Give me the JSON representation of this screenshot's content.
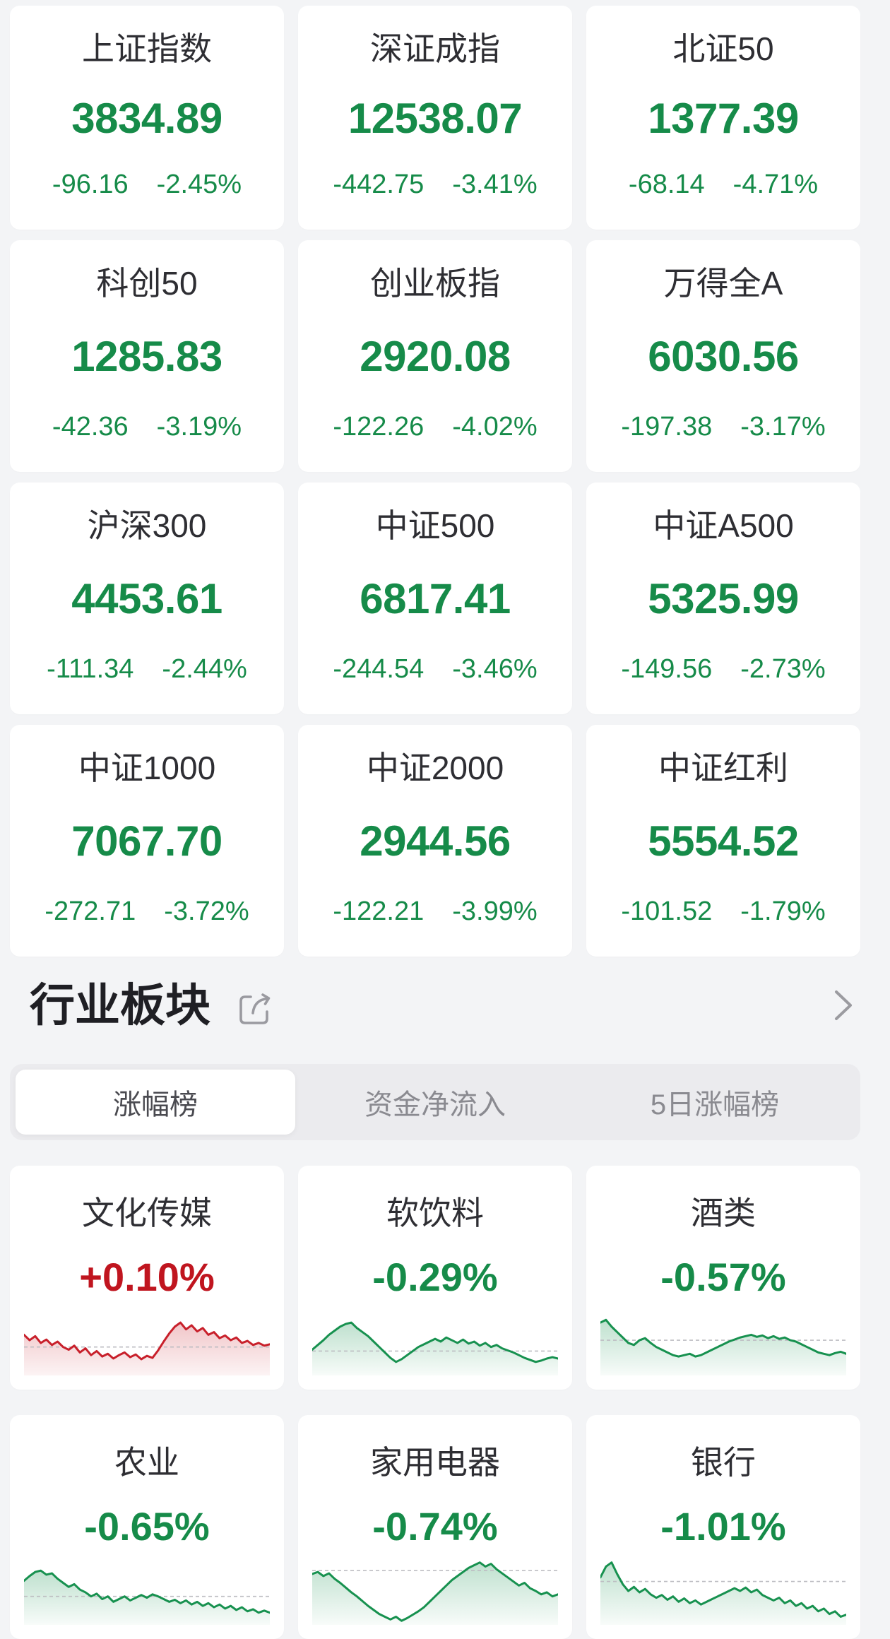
{
  "theme": {
    "down_green": "#168B49",
    "up_red": "#C0151F",
    "green_line": "#17914F",
    "red_line": "#C8202B",
    "green_fill_top": "rgba(23,145,79,0.28)",
    "green_fill_bottom": "rgba(23,145,79,0.03)",
    "red_fill_top": "rgba(200,32,43,0.26)",
    "red_fill_bottom": "rgba(200,32,43,0.05)",
    "baseline_color": "#bdbdc2",
    "page_bg": "#f3f4f6",
    "card_bg": "#ffffff"
  },
  "indices": [
    {
      "name": "上证指数",
      "value": "3834.89",
      "change": "-96.16",
      "change_pct": "-2.45%"
    },
    {
      "name": "深证成指",
      "value": "12538.07",
      "change": "-442.75",
      "change_pct": "-3.41%"
    },
    {
      "name": "北证50",
      "value": "1377.39",
      "change": "-68.14",
      "change_pct": "-4.71%"
    },
    {
      "name": "科创50",
      "value": "1285.83",
      "change": "-42.36",
      "change_pct": "-3.19%"
    },
    {
      "name": "创业板指",
      "value": "2920.08",
      "change": "-122.26",
      "change_pct": "-4.02%"
    },
    {
      "name": "万得全A",
      "value": "6030.56",
      "change": "-197.38",
      "change_pct": "-3.17%"
    },
    {
      "name": "沪深300",
      "value": "4453.61",
      "change": "-111.34",
      "change_pct": "-2.44%"
    },
    {
      "name": "中证500",
      "value": "6817.41",
      "change": "-244.54",
      "change_pct": "-3.46%"
    },
    {
      "name": "中证A500",
      "value": "5325.99",
      "change": "-149.56",
      "change_pct": "-2.73%"
    },
    {
      "name": "中证1000",
      "value": "7067.70",
      "change": "-272.71",
      "change_pct": "-3.72%"
    },
    {
      "name": "中证2000",
      "value": "2944.56",
      "change": "-122.21",
      "change_pct": "-3.99%"
    },
    {
      "name": "中证红利",
      "value": "5554.52",
      "change": "-101.52",
      "change_pct": "-1.79%"
    }
  ],
  "section": {
    "title": "行业板块"
  },
  "tabs": [
    {
      "label": "涨幅榜",
      "active": true
    },
    {
      "label": "资金净流入",
      "active": false
    },
    {
      "label": "5日涨幅榜",
      "active": false
    }
  ],
  "sectors": [
    {
      "name": "文化传媒",
      "change_pct": "+0.10%",
      "direction": "up",
      "baseline": 58,
      "points": [
        40,
        48,
        42,
        52,
        47,
        55,
        50,
        58,
        62,
        56,
        66,
        60,
        70,
        64,
        72,
        68,
        75,
        70,
        66,
        73,
        69,
        76,
        71,
        74,
        63,
        50,
        38,
        28,
        22,
        32,
        26,
        35,
        30,
        40,
        36,
        45,
        41,
        48,
        44,
        52,
        49,
        55,
        52,
        56,
        54
      ]
    },
    {
      "name": "软饮料",
      "change_pct": "-0.29%",
      "direction": "down",
      "baseline": 64,
      "points": [
        62,
        55,
        48,
        40,
        34,
        28,
        24,
        22,
        30,
        36,
        42,
        50,
        58,
        66,
        74,
        80,
        76,
        70,
        64,
        58,
        54,
        50,
        46,
        50,
        44,
        48,
        52,
        47,
        53,
        50,
        56,
        52,
        58,
        55,
        60,
        63,
        66,
        70,
        74,
        77,
        80,
        78,
        75,
        73,
        75
      ]
    },
    {
      "name": "酒类",
      "change_pct": "-0.57%",
      "direction": "down",
      "baseline": 48,
      "points": [
        22,
        18,
        28,
        36,
        44,
        52,
        55,
        48,
        45,
        52,
        58,
        62,
        66,
        70,
        72,
        70,
        68,
        72,
        70,
        66,
        62,
        58,
        54,
        50,
        47,
        44,
        42,
        40,
        43,
        41,
        45,
        42,
        46,
        44,
        48,
        50,
        54,
        58,
        62,
        66,
        68,
        70,
        67,
        65,
        68
      ]
    },
    {
      "name": "农业",
      "change_pct": "-0.65%",
      "direction": "down",
      "baseline": 58,
      "points": [
        35,
        28,
        22,
        20,
        26,
        24,
        32,
        38,
        44,
        40,
        48,
        52,
        58,
        54,
        62,
        58,
        66,
        62,
        58,
        64,
        60,
        56,
        60,
        55,
        58,
        62,
        66,
        63,
        68,
        64,
        70,
        66,
        72,
        68,
        74,
        70,
        76,
        72,
        78,
        74,
        80,
        77,
        82,
        79,
        82
      ]
    },
    {
      "name": "家用电器",
      "change_pct": "-0.74%",
      "direction": "down",
      "baseline": 20,
      "points": [
        25,
        22,
        28,
        24,
        32,
        38,
        45,
        52,
        58,
        65,
        72,
        78,
        84,
        88,
        92,
        88,
        94,
        90,
        85,
        80,
        74,
        66,
        58,
        50,
        42,
        34,
        28,
        22,
        16,
        12,
        8,
        14,
        10,
        18,
        24,
        30,
        36,
        42,
        38,
        46,
        50,
        55,
        52,
        58,
        55
      ]
    },
    {
      "name": "银行",
      "change_pct": "-1.01%",
      "direction": "down",
      "baseline": 36,
      "points": [
        30,
        14,
        8,
        25,
        40,
        50,
        44,
        52,
        47,
        55,
        60,
        56,
        63,
        58,
        66,
        61,
        68,
        64,
        70,
        66,
        62,
        58,
        54,
        50,
        46,
        50,
        45,
        52,
        48,
        56,
        60,
        64,
        60,
        68,
        64,
        72,
        68,
        76,
        72,
        80,
        76,
        84,
        80,
        88,
        85
      ]
    }
  ]
}
